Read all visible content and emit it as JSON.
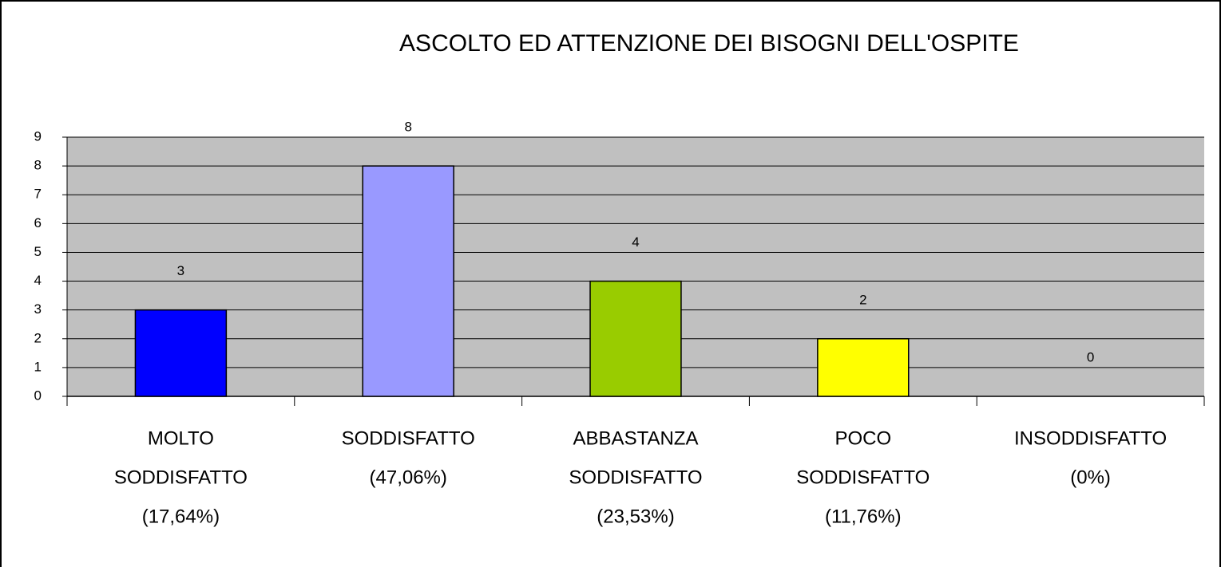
{
  "chart_data": {
    "type": "bar",
    "title": "ASCOLTO ED ATTENZIONE DEI BISOGNI DELL'OSPITE",
    "categories": [
      [
        "MOLTO",
        "SODDISFATTO",
        "(17,64%)"
      ],
      [
        "SODDISFATTO",
        "(47,06%)"
      ],
      [
        "ABBASTANZA",
        "SODDISFATTO",
        "(23,53%)"
      ],
      [
        "POCO",
        "SODDISFATTO",
        "(11,76%)"
      ],
      [
        "INSODDISFATTO",
        "(0%)"
      ]
    ],
    "values": [
      3,
      8,
      4,
      2,
      0
    ],
    "colors": [
      "#0000ff",
      "#9999ff",
      "#99cc00",
      "#ffff00",
      "#ff00ff"
    ],
    "ylim": [
      0,
      9
    ],
    "yticks": [
      0,
      1,
      2,
      3,
      4,
      5,
      6,
      7,
      8,
      9
    ],
    "grid": true
  }
}
